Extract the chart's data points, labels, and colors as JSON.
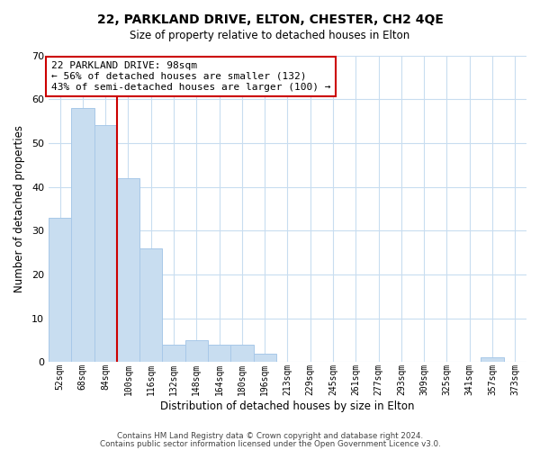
{
  "title": "22, PARKLAND DRIVE, ELTON, CHESTER, CH2 4QE",
  "subtitle": "Size of property relative to detached houses in Elton",
  "xlabel": "Distribution of detached houses by size in Elton",
  "ylabel": "Number of detached properties",
  "bar_color": "#c8ddf0",
  "bar_edge_color": "#a8c8e8",
  "grid_color": "#c8ddf0",
  "background_color": "#ffffff",
  "annotation_box_color": "#ffffff",
  "annotation_box_edge": "#cc0000",
  "vline_color": "#cc0000",
  "bin_labels": [
    "52sqm",
    "68sqm",
    "84sqm",
    "100sqm",
    "116sqm",
    "132sqm",
    "148sqm",
    "164sqm",
    "180sqm",
    "196sqm",
    "213sqm",
    "229sqm",
    "245sqm",
    "261sqm",
    "277sqm",
    "293sqm",
    "309sqm",
    "325sqm",
    "341sqm",
    "357sqm",
    "373sqm"
  ],
  "bar_heights": [
    33,
    58,
    54,
    42,
    26,
    4,
    5,
    4,
    4,
    2,
    0,
    0,
    0,
    0,
    0,
    0,
    0,
    0,
    0,
    1,
    0
  ],
  "ylim": [
    0,
    70
  ],
  "yticks": [
    0,
    10,
    20,
    30,
    40,
    50,
    60,
    70
  ],
  "annotation_line1": "22 PARKLAND DRIVE: 98sqm",
  "annotation_line2": "← 56% of detached houses are smaller (132)",
  "annotation_line3": "43% of semi-detached houses are larger (100) →",
  "footer_line1": "Contains HM Land Registry data © Crown copyright and database right 2024.",
  "footer_line2": "Contains public sector information licensed under the Open Government Licence v3.0.",
  "vline_index": 2.5
}
